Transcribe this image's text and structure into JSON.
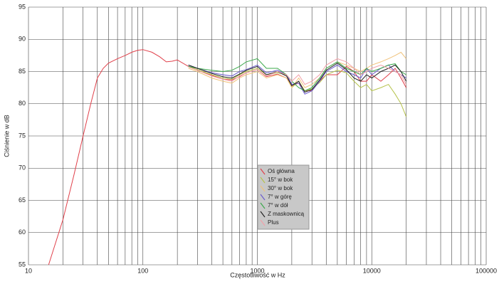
{
  "chart_data": {
    "type": "line",
    "x_label": "Częstotliwość w Hz",
    "y_label": "Ciśnienie w dB",
    "x_scale": "log",
    "legend": "center",
    "grid": true,
    "xlim": [
      10,
      100000
    ],
    "xticks": [
      10,
      100,
      1000,
      10000,
      100000
    ],
    "x_minor_grid": [
      20,
      30,
      40,
      50,
      60,
      70,
      80,
      90,
      200,
      300,
      400,
      500,
      600,
      700,
      800,
      900,
      2000,
      3000,
      4000,
      5000,
      6000,
      7000,
      8000,
      9000,
      20000,
      30000,
      40000,
      50000,
      60000,
      70000,
      80000,
      90000
    ],
    "ylim": [
      55,
      95
    ],
    "yticks": [
      55,
      60,
      65,
      70,
      75,
      80,
      85,
      90,
      95
    ],
    "x": [
      15,
      20,
      25,
      30,
      35,
      40,
      45,
      50,
      60,
      70,
      80,
      90,
      100,
      120,
      140,
      160,
      180,
      200,
      250,
      300,
      400,
      500,
      600,
      700,
      800,
      1000,
      1200,
      1500,
      1800,
      2000,
      2300,
      2600,
      3000,
      3500,
      4000,
      5000,
      6000,
      7000,
      8000,
      9000,
      10000,
      12000,
      14000,
      16000,
      18000,
      20000
    ],
    "series": [
      {
        "name": "Oś główna",
        "color": "#e0404a",
        "values": [
          55,
          62,
          69,
          75,
          80,
          84,
          85.5,
          86.3,
          87,
          87.5,
          88,
          88.3,
          88.4,
          88,
          87.3,
          86.5,
          86.6,
          86.8,
          85.8,
          85.2,
          84.4,
          83.8,
          83.7,
          84.2,
          84.8,
          85.3,
          84.2,
          84.6,
          84,
          82.8,
          83.2,
          82,
          82,
          83.5,
          84.5,
          84.5,
          85.8,
          85,
          83.5,
          83.5,
          84.5,
          83.5,
          84.5,
          85.5,
          84,
          82.5
        ]
      },
      {
        "name": "15° w bok",
        "color": "#b5c24a",
        "values": [
          null,
          null,
          null,
          null,
          null,
          null,
          null,
          null,
          null,
          null,
          null,
          null,
          null,
          null,
          null,
          null,
          null,
          null,
          85.8,
          85.3,
          84.5,
          84,
          83.8,
          84.5,
          85,
          85.5,
          84.5,
          84.8,
          84.5,
          82.5,
          83.5,
          82,
          82.3,
          83.3,
          84.5,
          85.2,
          84.8,
          83.5,
          82.5,
          83,
          82,
          82.5,
          83,
          81.5,
          80,
          78
        ]
      },
      {
        "name": "30° w bok",
        "color": "#f0c27a",
        "values": [
          null,
          null,
          null,
          null,
          null,
          null,
          null,
          null,
          null,
          null,
          null,
          null,
          null,
          null,
          null,
          null,
          null,
          null,
          85.5,
          85,
          84,
          83.5,
          83.2,
          84,
          84.5,
          85,
          84,
          84.5,
          84,
          82.5,
          84,
          82.5,
          83,
          84,
          85.5,
          86.5,
          86,
          85.5,
          85,
          85.5,
          86,
          86.5,
          87,
          87.5,
          88,
          87
        ]
      },
      {
        "name": "7° w górę",
        "color": "#6a5acd",
        "values": [
          null,
          null,
          null,
          null,
          null,
          null,
          null,
          null,
          null,
          null,
          null,
          null,
          null,
          null,
          null,
          null,
          null,
          null,
          86,
          85.5,
          84.8,
          84.5,
          84.3,
          85,
          85.3,
          86,
          84.8,
          85.2,
          84.5,
          83,
          83.2,
          81.5,
          82,
          83.5,
          85,
          86,
          85,
          84.5,
          84,
          85.5,
          84.5,
          85.5,
          86,
          85,
          84.5,
          84
        ]
      },
      {
        "name": "7° w dół",
        "color": "#3aa84a",
        "values": [
          null,
          null,
          null,
          null,
          null,
          null,
          null,
          null,
          null,
          null,
          null,
          null,
          null,
          null,
          null,
          null,
          null,
          null,
          85.8,
          85.5,
          85.2,
          85,
          85.2,
          85.8,
          86.5,
          87,
          85.5,
          85.5,
          84.5,
          83.5,
          82.5,
          82,
          82.5,
          84,
          85.5,
          86.5,
          85.5,
          85,
          84.5,
          85.5,
          85,
          85.5,
          86,
          86.2,
          85,
          84.5
        ]
      },
      {
        "name": "Z maskownicą",
        "color": "#222222",
        "values": [
          null,
          null,
          null,
          null,
          null,
          null,
          null,
          null,
          null,
          null,
          null,
          null,
          null,
          null,
          null,
          null,
          null,
          null,
          86,
          85.5,
          84.7,
          84.2,
          84,
          84.6,
          85.2,
          85.8,
          84.5,
          85,
          84.3,
          82.8,
          83.5,
          81.8,
          82.2,
          83.7,
          85.2,
          86.3,
          85.3,
          84,
          83.5,
          84.5,
          84,
          85,
          85.5,
          86,
          85,
          83.5
        ]
      },
      {
        "name": "Plus",
        "color": "#f2a0a8",
        "values": [
          null,
          null,
          null,
          null,
          null,
          null,
          null,
          null,
          null,
          null,
          null,
          null,
          null,
          null,
          null,
          null,
          null,
          null,
          85.7,
          85.2,
          84.3,
          83.8,
          83.5,
          84.3,
          84.8,
          85.3,
          84.3,
          85,
          84.5,
          83.5,
          84.5,
          83,
          83.5,
          84.5,
          86,
          87,
          86.5,
          85.5,
          84.5,
          85,
          85.5,
          86,
          85.5,
          85,
          84.5,
          83
        ]
      }
    ]
  }
}
